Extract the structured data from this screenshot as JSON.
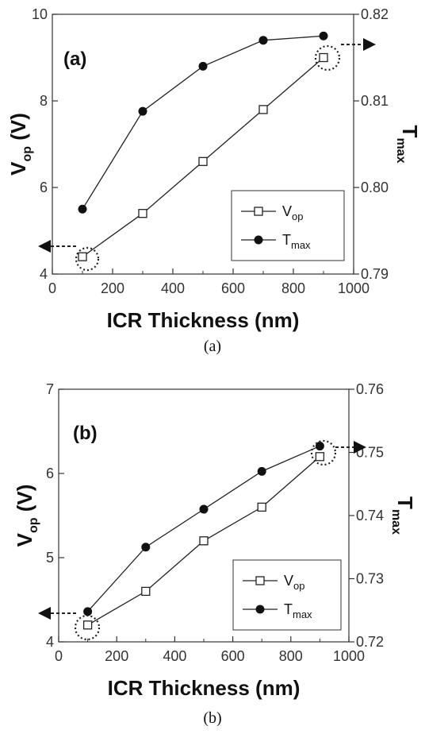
{
  "chart_data": [
    {
      "type": "line",
      "panel_label": "(a)",
      "caption": "(a)",
      "xlabel": "ICR Thickness (nm)",
      "ylabel_main": "V",
      "ylabel_sub": "op",
      "ylabel_unit": "(V)",
      "y2label_main": "T",
      "y2label_sub": "max",
      "xlim": [
        0,
        1000
      ],
      "ylim": [
        4,
        10
      ],
      "y2lim": [
        0.79,
        0.82
      ],
      "xticks": [
        "0",
        "200",
        "400",
        "600",
        "800",
        "1000"
      ],
      "yticks": [
        "4",
        "6",
        "8",
        "10"
      ],
      "y2ticks": [
        "0.79",
        "0.80",
        "0.81",
        "0.82"
      ],
      "x": [
        100,
        300,
        500,
        700,
        900
      ],
      "series": [
        {
          "name_main": "V",
          "name_sub": "op",
          "marker": "open-square",
          "axis": "left",
          "values": [
            4.4,
            5.4,
            6.6,
            7.8,
            9.0
          ]
        },
        {
          "name_main": "T",
          "name_sub": "max",
          "marker": "filled-circle",
          "axis": "right",
          "values": [
            0.7975,
            0.8088,
            0.814,
            0.817,
            0.8175
          ]
        }
      ],
      "legend_position": "bottom-right",
      "grid": false
    },
    {
      "type": "line",
      "panel_label": "(b)",
      "caption": "(b)",
      "xlabel": "ICR Thickness (nm)",
      "ylabel_main": "V",
      "ylabel_sub": "op",
      "ylabel_unit": "(V)",
      "y2label_main": "T",
      "y2label_sub": "max",
      "xlim": [
        0,
        1000
      ],
      "ylim": [
        4,
        7
      ],
      "y2lim": [
        0.72,
        0.76
      ],
      "xticks": [
        "0",
        "200",
        "400",
        "600",
        "800",
        "1000"
      ],
      "yticks": [
        "4",
        "5",
        "6",
        "7"
      ],
      "y2ticks": [
        "0.72",
        "0.73",
        "0.74",
        "0.75",
        "0.76"
      ],
      "x": [
        100,
        300,
        500,
        700,
        900
      ],
      "series": [
        {
          "name_main": "V",
          "name_sub": "op",
          "marker": "open-square",
          "axis": "left",
          "values": [
            4.2,
            4.6,
            5.2,
            5.6,
            6.2
          ]
        },
        {
          "name_main": "T",
          "name_sub": "max",
          "marker": "filled-circle",
          "axis": "right",
          "values": [
            0.7248,
            0.735,
            0.741,
            0.747,
            0.751
          ]
        }
      ],
      "legend_position": "bottom-right",
      "grid": false
    }
  ]
}
